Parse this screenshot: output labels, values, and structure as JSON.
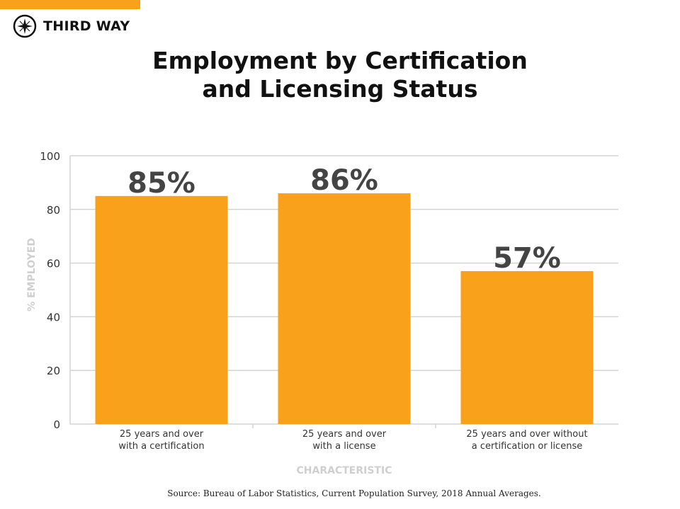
{
  "brand": {
    "name": "THIRD WAY",
    "accent": "#F9A11B"
  },
  "source": "Source: Bureau of Labor Statistics, Current Population Survey, 2018 Annual Averages.",
  "chart_data": {
    "type": "bar",
    "title": "Employment by Certification and Licensing Status",
    "title_lines": [
      "Employment by Certification",
      "and Licensing Status"
    ],
    "categories": [
      [
        "25 years and over",
        "with a certification"
      ],
      [
        "25 years and over",
        "with a license"
      ],
      [
        "25 years and over without",
        "a certification or license"
      ]
    ],
    "values": [
      85,
      86,
      57
    ],
    "data_labels": [
      "85%",
      "86%",
      "57%"
    ],
    "xlabel": "CHARACTERISTIC",
    "ylabel": "% EMPLOYED",
    "ylim": [
      0,
      100
    ],
    "yticks": [
      "0",
      "20",
      "40",
      "60",
      "80",
      "100"
    ],
    "grid": true,
    "bar_color": "#F9A11B"
  }
}
